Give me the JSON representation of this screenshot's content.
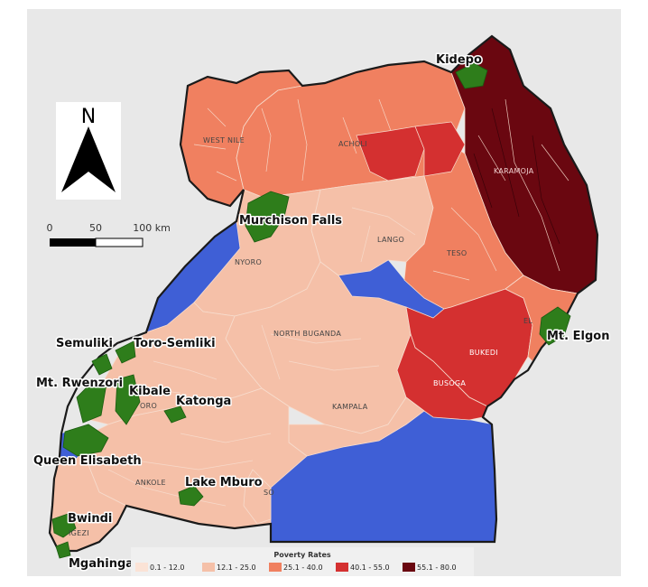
{
  "north_arrow": {
    "letter": "N"
  },
  "scale_bar": {
    "ticks": [
      "0",
      "50",
      "100 km"
    ]
  },
  "regions": [
    {
      "key": "west_nile",
      "label": "WEST NILE",
      "color": "#f08060"
    },
    {
      "key": "acholi",
      "label": "ACHOLI",
      "color": "#f08060"
    },
    {
      "key": "karamoja",
      "label": "KARAMOJA",
      "color": "#6a0710"
    },
    {
      "key": "lango",
      "label": "LANGO",
      "color": "#f5c0a8"
    },
    {
      "key": "teso",
      "label": "TESO",
      "color": "#f08060"
    },
    {
      "key": "nyoro",
      "label": "NYORO",
      "color": "#f5c0a8"
    },
    {
      "key": "north_buganda",
      "label": "NORTH BUGANDA",
      "color": "#f5c0a8"
    },
    {
      "key": "bukedi",
      "label": "BUKEDI",
      "color": "#d43030"
    },
    {
      "key": "busoga",
      "label": "BUSOGA",
      "color": "#d43030"
    },
    {
      "key": "elgon",
      "label": "EL",
      "color": "#f08060"
    },
    {
      "key": "kampala",
      "label": "KAMPALA",
      "color": "#f5c0a8"
    },
    {
      "key": "toro",
      "label": "ORO",
      "color": "#f5c0a8"
    },
    {
      "key": "ankole",
      "label": "ANKOLE",
      "color": "#f5c0a8"
    },
    {
      "key": "south_buganda",
      "label": "SO",
      "color": "#f5c0a8"
    },
    {
      "key": "kigezi",
      "label": "IGEZI",
      "color": "#f5c0a8"
    }
  ],
  "parks": [
    {
      "key": "kidepo",
      "label": "Kidepo"
    },
    {
      "key": "murchison",
      "label": "Murchison Falls"
    },
    {
      "key": "semuliki",
      "label": "Semuliki"
    },
    {
      "key": "toro_semliki",
      "label": "Toro-Semliki"
    },
    {
      "key": "rwenzori",
      "label": "Mt. Rwenzori"
    },
    {
      "key": "kibale",
      "label": "Kibale"
    },
    {
      "key": "katonga",
      "label": "Katonga"
    },
    {
      "key": "queen_elisabeth",
      "label": "Queen Elisabeth"
    },
    {
      "key": "lake_mburo",
      "label": "Lake Mburo"
    },
    {
      "key": "bwindi",
      "label": "Bwindi"
    },
    {
      "key": "mgahinga",
      "label": "Mgahinga"
    },
    {
      "key": "elgon",
      "label": "Mt. Elgon"
    }
  ],
  "colors": {
    "background": "#e8e8e8",
    "water": "#3f5fd6",
    "park": "#2e7d1b",
    "border": "#1a1a1a",
    "district_lines": "#f7dccd"
  },
  "legend": {
    "title": "Poverty Rates",
    "classes": [
      {
        "label": "0.1 - 12.0",
        "color": "#fbe3d6"
      },
      {
        "label": "12.1 - 25.0",
        "color": "#f5c0a8"
      },
      {
        "label": "25.1 - 40.0",
        "color": "#f08060"
      },
      {
        "label": "40.1 - 55.0",
        "color": "#d43030"
      },
      {
        "label": "55.1 - 80.0",
        "color": "#6a0710"
      }
    ]
  }
}
